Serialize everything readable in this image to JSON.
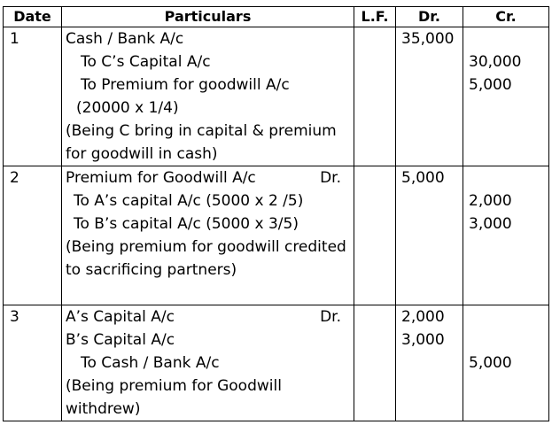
{
  "headers": {
    "date": "Date",
    "particulars": "Particulars",
    "lf": "L.F.",
    "dr": "Dr.",
    "cr": "Cr."
  },
  "entries": [
    {
      "date": "1",
      "lines": [
        "Cash / Bank A/c",
        "To C’s Capital A/c",
        "To Premium for goodwill A/c",
        "(20000 x 1/4)",
        "(Being C bring in capital & premium",
        "for goodwill in cash)"
      ],
      "dr": [
        "35,000"
      ],
      "cr": [
        "30,000",
        "5,000"
      ]
    },
    {
      "date": "2",
      "lines": [
        "Premium for Goodwill A/c",
        "To A’s capital A/c (5000 x 2 /5)",
        "To B’s capital A/c (5000 x 3/5)",
        "(Being premium for goodwill credited",
        "to sacrificing partners)"
      ],
      "dr_marker": "Dr.",
      "dr": [
        "5,000"
      ],
      "cr": [
        "2,000",
        "3,000"
      ]
    },
    {
      "date": "3",
      "lines": [
        "A’s Capital A/c",
        "B’s Capital A/c",
        "To Cash / Bank A/c",
        "(Being premium for Goodwill",
        "withdrew)"
      ],
      "dr_marker": "Dr.",
      "dr": [
        "2,000",
        "3,000"
      ],
      "cr": [
        "5,000"
      ]
    }
  ]
}
